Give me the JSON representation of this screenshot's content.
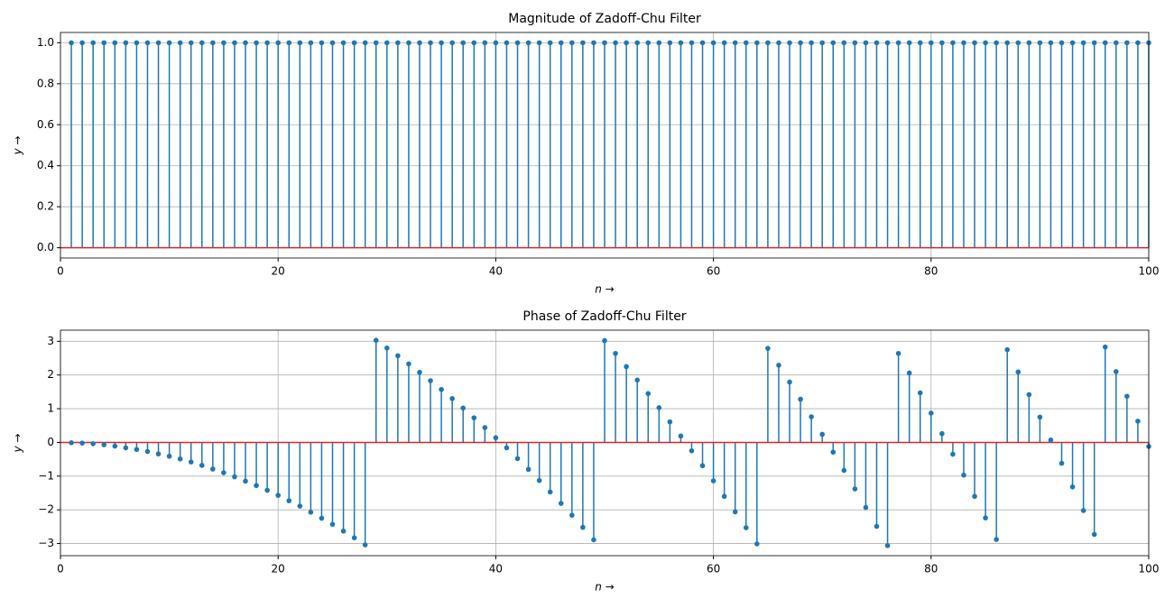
{
  "chart_data": [
    {
      "type": "stem",
      "title": "Magnitude of Zadoff-Chu Filter",
      "xlabel": "n →",
      "ylabel": "y →",
      "x": [
        1,
        2,
        3,
        4,
        5,
        6,
        7,
        8,
        9,
        10,
        11,
        12,
        13,
        14,
        15,
        16,
        17,
        18,
        19,
        20,
        21,
        22,
        23,
        24,
        25,
        26,
        27,
        28,
        29,
        30,
        31,
        32,
        33,
        34,
        35,
        36,
        37,
        38,
        39,
        40,
        41,
        42,
        43,
        44,
        45,
        46,
        47,
        48,
        49,
        50,
        51,
        52,
        53,
        54,
        55,
        56,
        57,
        58,
        59,
        60,
        61,
        62,
        63,
        64,
        65,
        66,
        67,
        68,
        69,
        70,
        71,
        72,
        73,
        74,
        75,
        76,
        77,
        78,
        79,
        80,
        81,
        82,
        83,
        84,
        85,
        86,
        87,
        88,
        89,
        90,
        91,
        92,
        93,
        94,
        95,
        96,
        97,
        98,
        99,
        100
      ],
      "values": [
        1,
        1,
        1,
        1,
        1,
        1,
        1,
        1,
        1,
        1,
        1,
        1,
        1,
        1,
        1,
        1,
        1,
        1,
        1,
        1,
        1,
        1,
        1,
        1,
        1,
        1,
        1,
        1,
        1,
        1,
        1,
        1,
        1,
        1,
        1,
        1,
        1,
        1,
        1,
        1,
        1,
        1,
        1,
        1,
        1,
        1,
        1,
        1,
        1,
        1,
        1,
        1,
        1,
        1,
        1,
        1,
        1,
        1,
        1,
        1,
        1,
        1,
        1,
        1,
        1,
        1,
        1,
        1,
        1,
        1,
        1,
        1,
        1,
        1,
        1,
        1,
        1,
        1,
        1,
        1,
        1,
        1,
        1,
        1,
        1,
        1,
        1,
        1,
        1,
        1,
        1,
        1,
        1,
        1,
        1,
        1,
        1,
        1,
        1,
        1
      ],
      "color": "#1f77b4",
      "baseline_color": "#d62728",
      "xlim": [
        0,
        100
      ],
      "xticks": [
        0,
        20,
        40,
        60,
        80,
        100
      ],
      "ylim": [
        -0.05,
        1.05
      ],
      "yticks": [
        {
          "value": 0,
          "label": "0.0"
        },
        {
          "value": 0.2,
          "label": "0.2"
        },
        {
          "value": 0.4,
          "label": "0.4"
        },
        {
          "value": 0.6,
          "label": "0.6"
        },
        {
          "value": 0.8,
          "label": "0.8"
        },
        {
          "value": 1,
          "label": "1.0"
        }
      ],
      "grid": true
    },
    {
      "type": "stem",
      "title": "Phase of Zadoff-Chu Filter",
      "xlabel": "n →",
      "ylabel": "y →",
      "x": [
        1,
        2,
        3,
        4,
        5,
        6,
        7,
        8,
        9,
        10,
        11,
        12,
        13,
        14,
        15,
        16,
        17,
        18,
        19,
        20,
        21,
        22,
        23,
        24,
        25,
        26,
        27,
        28,
        29,
        30,
        31,
        32,
        33,
        34,
        35,
        36,
        37,
        38,
        39,
        40,
        41,
        42,
        43,
        44,
        45,
        46,
        47,
        48,
        49,
        50,
        51,
        52,
        53,
        54,
        55,
        56,
        57,
        58,
        59,
        60,
        61,
        62,
        63,
        64,
        65,
        66,
        67,
        68,
        69,
        70,
        71,
        72,
        73,
        74,
        75,
        76,
        77,
        78,
        79,
        80,
        81,
        82,
        83,
        84,
        85,
        86,
        87,
        88,
        89,
        90,
        91,
        92,
        93,
        94,
        95,
        96,
        97,
        98,
        99,
        100
      ],
      "values": [
        -0.01,
        -0.02,
        -0.04,
        -0.07,
        -0.11,
        -0.16,
        -0.21,
        -0.27,
        -0.34,
        -0.41,
        -0.49,
        -0.58,
        -0.68,
        -0.79,
        -0.9,
        -1.02,
        -1.15,
        -1.28,
        -1.42,
        -1.57,
        -1.73,
        -1.89,
        -2.07,
        -2.25,
        -2.43,
        -2.63,
        -2.83,
        -3.04,
        3.03,
        2.8,
        2.57,
        2.33,
        2.08,
        1.83,
        1.57,
        1.3,
        1.02,
        0.73,
        0.44,
        0.14,
        -0.16,
        -0.48,
        -0.8,
        -1.13,
        -1.47,
        -1.81,
        -2.16,
        -2.52,
        -2.89,
        3.02,
        2.64,
        2.25,
        1.85,
        1.45,
        1.03,
        0.61,
        0.19,
        -0.25,
        -0.69,
        -1.14,
        -1.6,
        -2.06,
        -2.53,
        -3.01,
        2.79,
        2.29,
        1.79,
        1.28,
        0.76,
        0.24,
        -0.29,
        -0.83,
        -1.38,
        -1.93,
        -2.49,
        -3.06,
        2.64,
        2.06,
        1.47,
        0.87,
        0.26,
        -0.35,
        -0.97,
        -1.6,
        -2.24,
        -2.88,
        2.75,
        2.09,
        1.42,
        0.75,
        0.07,
        -0.62,
        -1.32,
        -2.02,
        -2.73,
        2.83,
        2.1,
        1.37,
        0.63,
        -0.12
      ],
      "color": "#1f77b4",
      "baseline_color": "#d62728",
      "xlim": [
        0,
        100
      ],
      "xticks": [
        0,
        20,
        40,
        60,
        80,
        100
      ],
      "ylim": [
        -3.36,
        3.33
      ],
      "yticks": [
        {
          "value": -3,
          "label": "−3"
        },
        {
          "value": -2,
          "label": "−2"
        },
        {
          "value": -1,
          "label": "−1"
        },
        0,
        1,
        2,
        3
      ],
      "grid": true
    }
  ]
}
